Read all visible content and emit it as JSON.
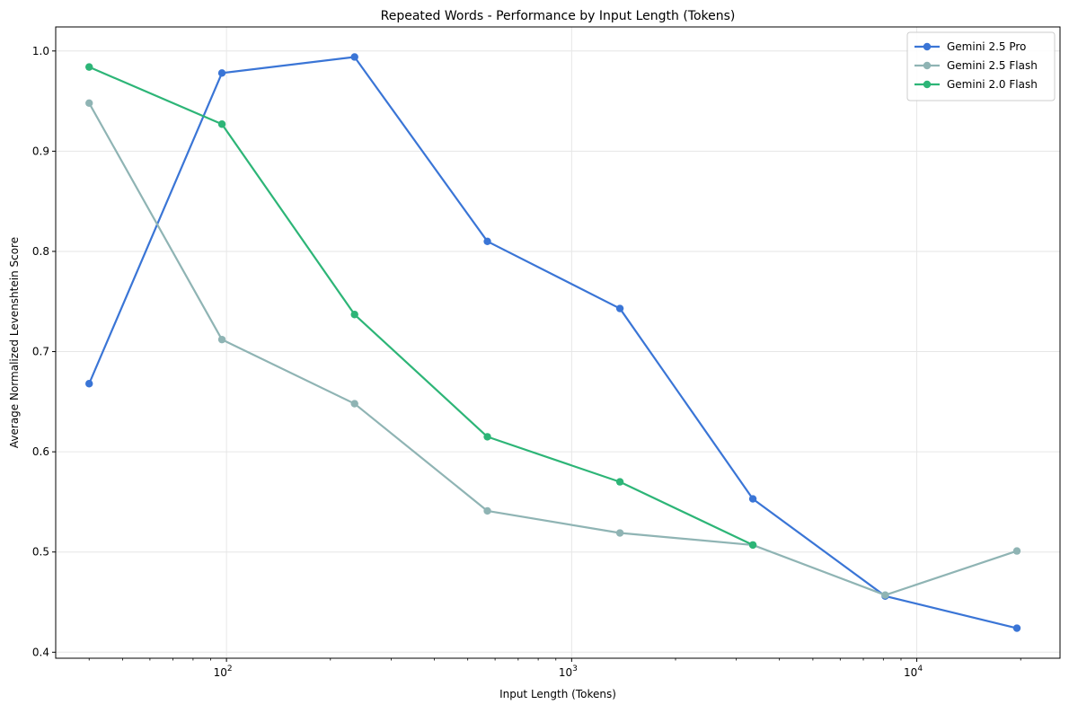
{
  "chart_data": {
    "type": "line",
    "title": "Repeated Words - Performance by Input Length (Tokens)",
    "xlabel": "Input Length (Tokens)",
    "ylabel": "Average Normalized Levenshtein Score",
    "xscale": "log",
    "xlim": [
      32,
      26000
    ],
    "ylim": [
      0.394,
      1.024
    ],
    "grid": true,
    "legend_position": "top-right",
    "x_ticks": [
      {
        "value": 100,
        "base": "10",
        "exp": "2"
      },
      {
        "value": 1000,
        "base": "10",
        "exp": "3"
      },
      {
        "value": 10000,
        "base": "10",
        "exp": "4"
      }
    ],
    "y_ticks": [
      {
        "value": 0.4,
        "label": "0.4"
      },
      {
        "value": 0.5,
        "label": "0.5"
      },
      {
        "value": 0.6,
        "label": "0.6"
      },
      {
        "value": 0.7,
        "label": "0.7"
      },
      {
        "value": 0.8,
        "label": "0.8"
      },
      {
        "value": 0.9,
        "label": "0.9"
      },
      {
        "value": 1.0,
        "label": "1.0"
      }
    ],
    "series": [
      {
        "name": "Gemini 2.5 Pro",
        "color": "#3a75d6",
        "x": [
          40,
          97,
          235,
          570,
          1380,
          3350,
          8100,
          19500
        ],
        "y": [
          0.668,
          0.978,
          0.994,
          0.81,
          0.743,
          0.553,
          0.456,
          0.424
        ]
      },
      {
        "name": "Gemini 2.5 Flash",
        "color": "#8fb4b4",
        "x": [
          40,
          97,
          235,
          570,
          1380,
          3350,
          8100,
          19500
        ],
        "y": [
          0.948,
          0.712,
          0.648,
          0.541,
          0.519,
          0.507,
          0.457,
          0.501
        ]
      },
      {
        "name": "Gemini 2.0 Flash",
        "color": "#2db577",
        "x": [
          40,
          97,
          235,
          570,
          1380,
          3350
        ],
        "y": [
          0.984,
          0.927,
          0.737,
          0.615,
          0.57,
          0.507
        ]
      }
    ]
  }
}
